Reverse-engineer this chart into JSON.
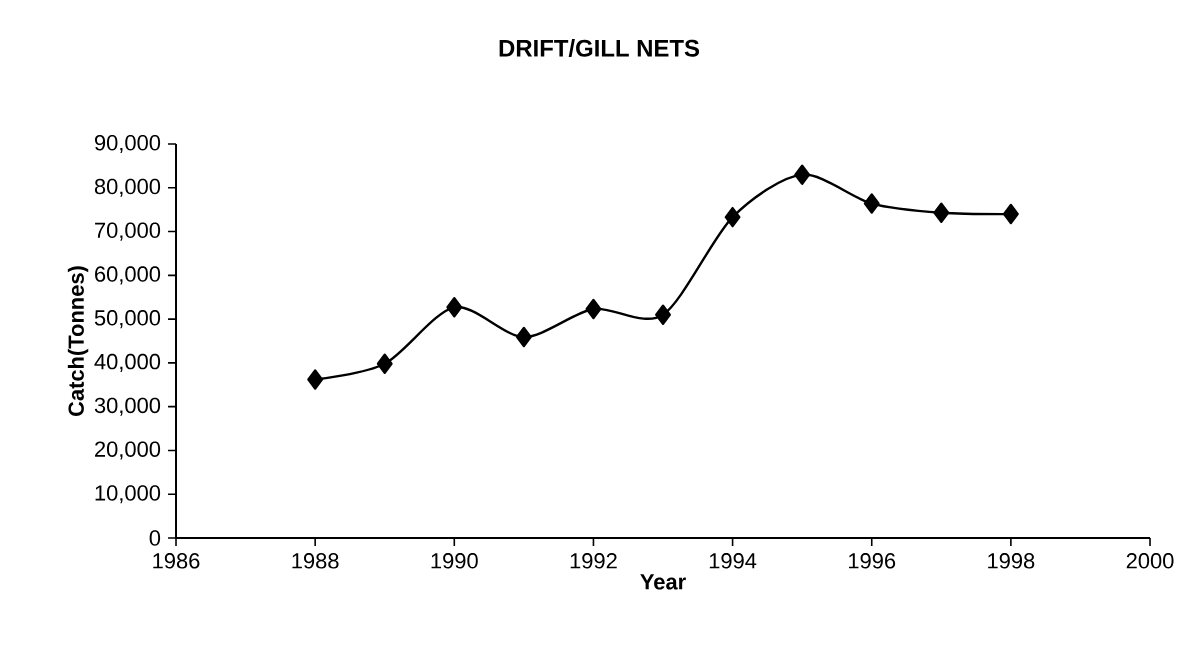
{
  "chart_data": {
    "type": "line",
    "title": "DRIFT/GILL NETS",
    "xlabel": "Year",
    "ylabel": "Catch(Tonnes)",
    "x": [
      1988,
      1989,
      1990,
      1991,
      1992,
      1993,
      1994,
      1995,
      1996,
      1997,
      1998
    ],
    "series": [
      {
        "color": "#000000",
        "values": [
          36200,
          39800,
          52700,
          45900,
          52300,
          51000,
          73300,
          83000,
          76400,
          74300,
          74000
        ]
      }
    ],
    "xlim": [
      1986,
      2000
    ],
    "xticks": [
      1986,
      1988,
      1990,
      1992,
      1994,
      1996,
      1998,
      2000
    ],
    "ylim": [
      0,
      90000
    ],
    "yticks": [
      {
        "value": 0,
        "label": "0"
      },
      {
        "value": 10000,
        "label": "10,000"
      },
      {
        "value": 20000,
        "label": "20,000"
      },
      {
        "value": 30000,
        "label": "30,000"
      },
      {
        "value": 40000,
        "label": "40,000"
      },
      {
        "value": 50000,
        "label": "50,000"
      },
      {
        "value": 60000,
        "label": "60,000"
      },
      {
        "value": 70000,
        "label": "70,000"
      },
      {
        "value": 80000,
        "label": "80,000"
      },
      {
        "value": 90000,
        "label": "90,000"
      }
    ],
    "marker": "diamond",
    "grid": false
  }
}
